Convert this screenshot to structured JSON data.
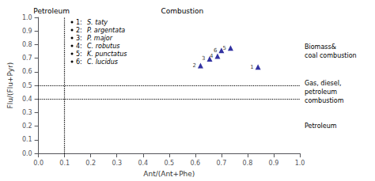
{
  "chart_data": {
    "type": "scatter",
    "xlabel": "Ant/(Ant+Phe)",
    "ylabel": "Flu/(Flu+Pyr)",
    "x": [
      0.84,
      0.62,
      0.655,
      0.685,
      0.735,
      0.7
    ],
    "y": [
      0.635,
      0.645,
      0.695,
      0.715,
      0.775,
      0.758
    ],
    "point_labels": [
      "1",
      "2",
      "3",
      "4",
      "5",
      "6"
    ],
    "color": "#00008B",
    "marker": "triangle",
    "xlim": [
      0.0,
      1.0
    ],
    "ylim": [
      0.0,
      1.0
    ],
    "xticks": [
      {
        "value": 0.0,
        "label": "0.0"
      },
      0.1,
      0.2,
      0.3,
      0.4,
      0.5,
      0.6,
      0.7,
      0.8,
      0.9,
      {
        "value": 1.0,
        "label": "1.0"
      }
    ],
    "yticks": [
      {
        "value": 0.0,
        "label": "0.0"
      },
      0.1,
      0.2,
      0.3,
      0.4,
      0.5,
      0.6,
      0.7,
      0.8,
      0.9,
      {
        "value": 1.0,
        "label": "1.0"
      }
    ],
    "grid": false,
    "hlines": [
      0.5,
      0.4
    ],
    "vlines": [
      0.1
    ],
    "region_labels": [
      "Petroleum",
      "Combustion"
    ],
    "side_labels": [
      "Biomass&\ncoal combustion",
      "Gas, diesel,\npetroleum\ncombustiom",
      "Petroleum"
    ],
    "key": [
      [
        "1:",
        "S. taty"
      ],
      [
        "2:",
        "P. argentata"
      ],
      [
        "3:",
        "P. major"
      ],
      [
        "4:",
        "C. robutus"
      ],
      [
        "5:",
        "K. punctatus"
      ],
      [
        "6:",
        "C. lucidus"
      ]
    ]
  }
}
